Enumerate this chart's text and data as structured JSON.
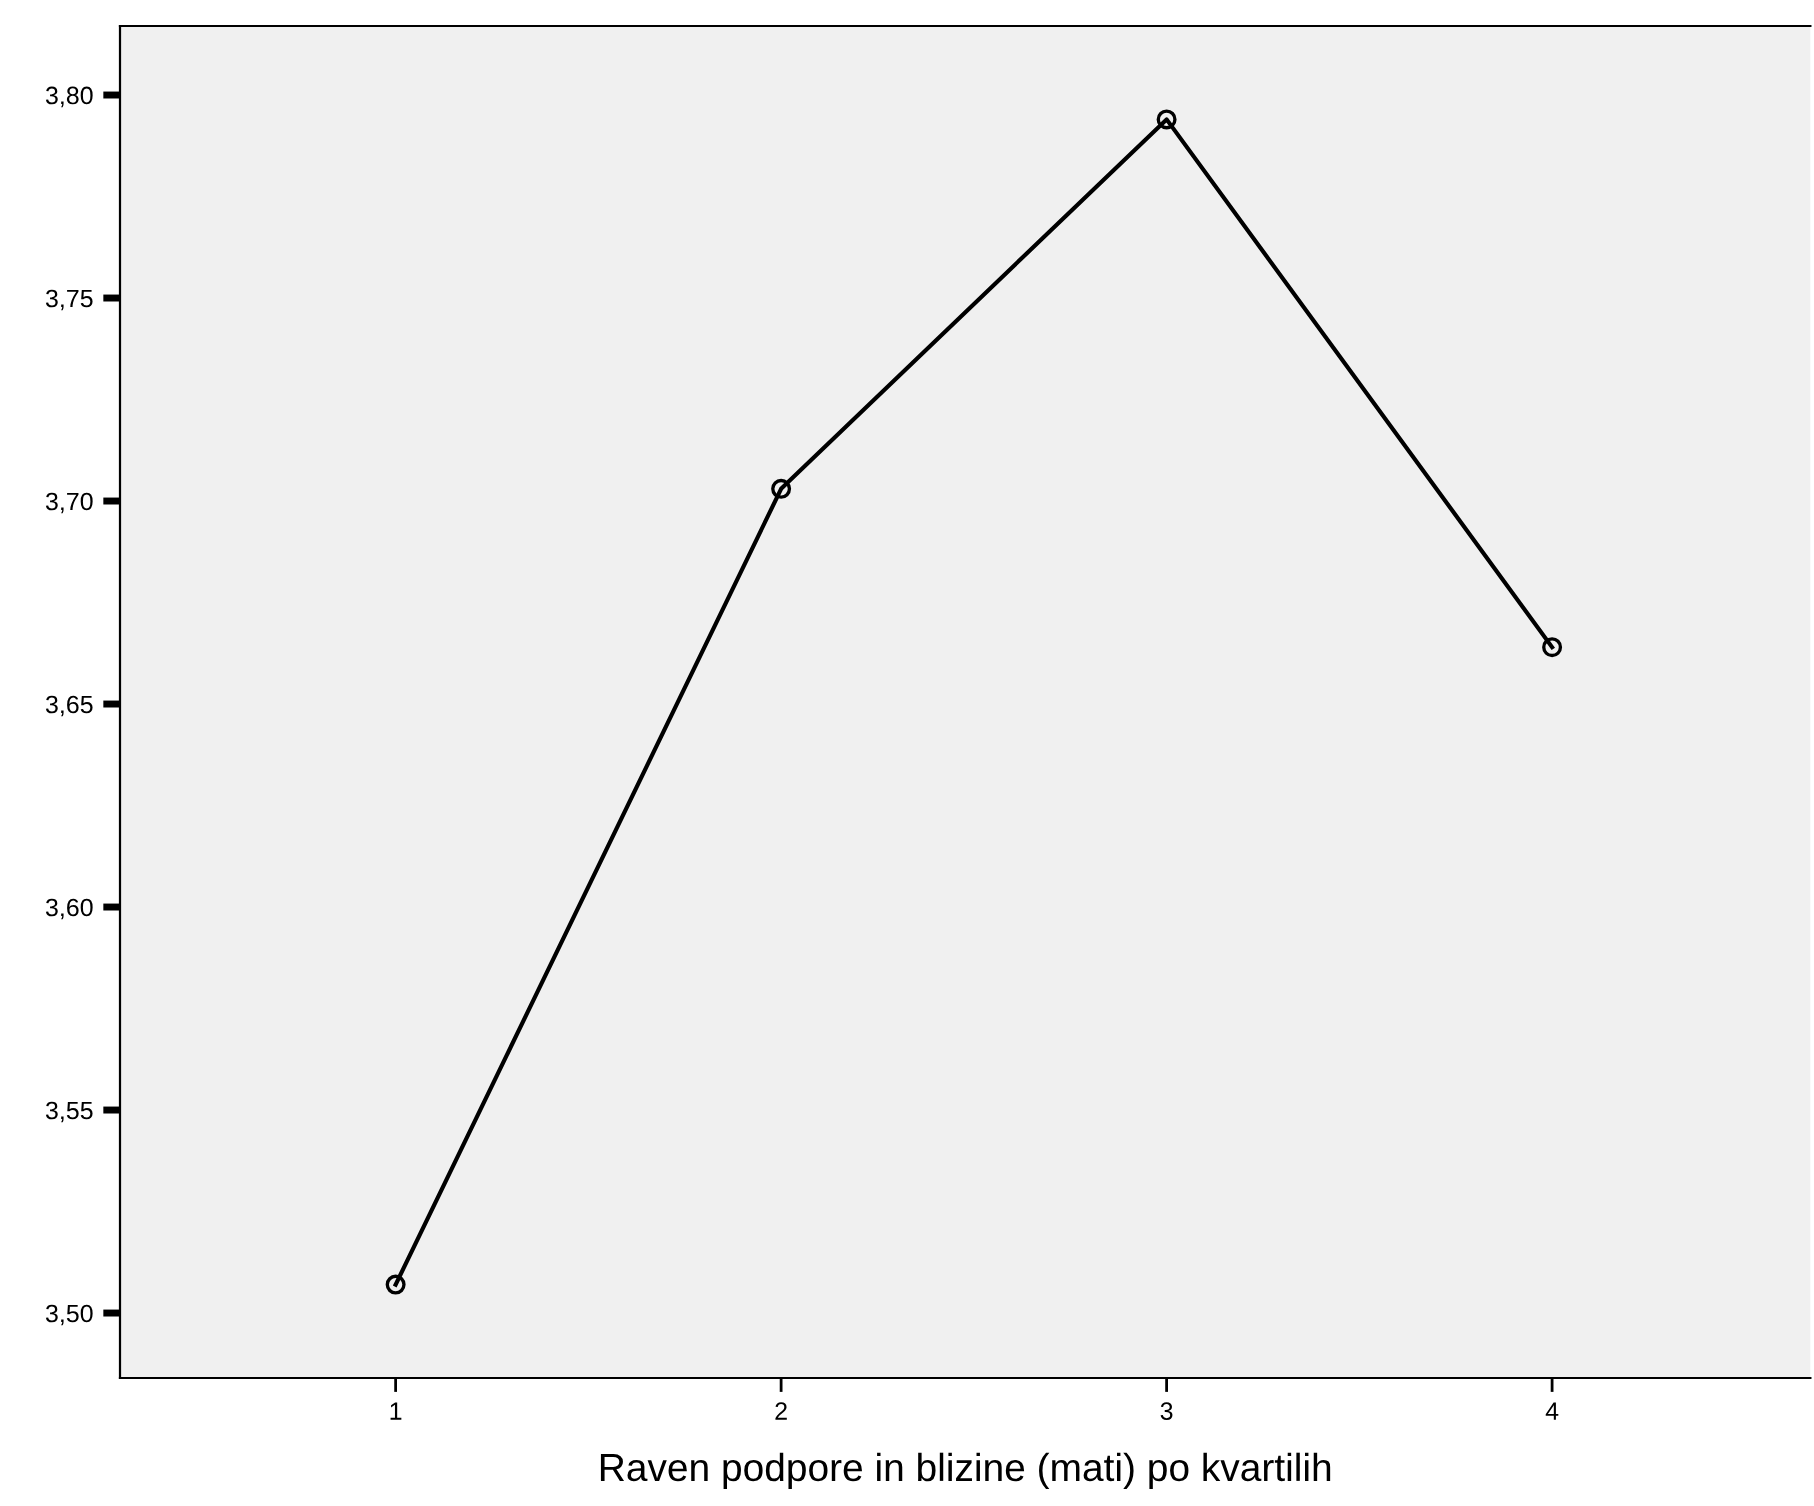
{
  "chart_data": {
    "type": "line",
    "xlabel": "Raven podpore in blizine (mati) po kvartilih",
    "categories": [
      "1",
      "2",
      "3",
      "4"
    ],
    "series": [
      {
        "color": "#000000",
        "values": [
          3.507,
          3.703,
          3.794,
          3.664
        ]
      }
    ],
    "ylim": [
      3.484,
      3.817
    ],
    "yticks": [
      {
        "value": 3.5,
        "label": "3,50"
      },
      {
        "value": 3.55,
        "label": "3,55"
      },
      {
        "value": 3.6,
        "label": "3,60"
      },
      {
        "value": 3.65,
        "label": "3,65"
      },
      {
        "value": 3.7,
        "label": "3,70"
      },
      {
        "value": 3.75,
        "label": "3,75"
      },
      {
        "value": 3.8,
        "label": "3,80"
      }
    ],
    "grid": false,
    "legend": false,
    "marker": "circle",
    "line_style": "solid"
  }
}
